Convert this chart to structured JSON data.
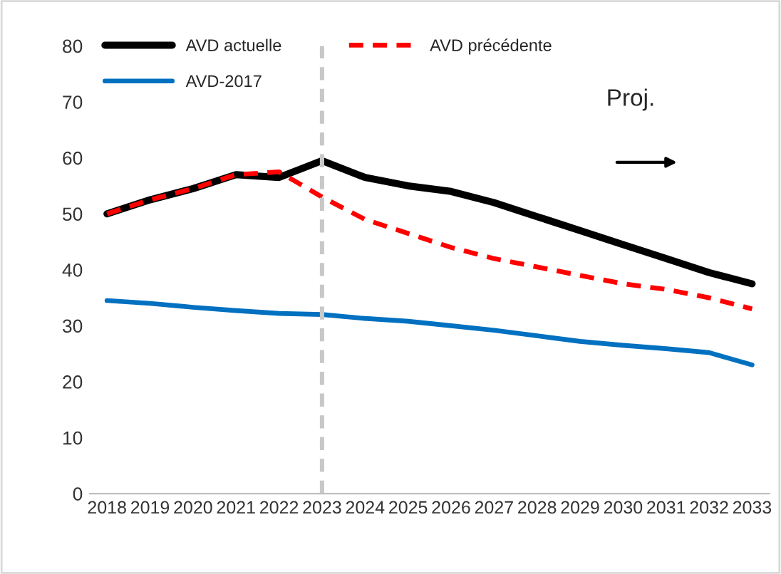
{
  "chart_data": {
    "type": "line",
    "categories": [
      "2018",
      "2019",
      "2020",
      "2021",
      "2022",
      "2023",
      "2024",
      "2025",
      "2026",
      "2027",
      "2028",
      "2029",
      "2030",
      "2031",
      "2032",
      "2033"
    ],
    "series": [
      {
        "name": "AVD actuelle",
        "color": "#000000",
        "line_style": "solid",
        "values": [
          50,
          52.5,
          54.5,
          57,
          56.5,
          59.5,
          56.5,
          55,
          54,
          52,
          49.5,
          47,
          44.5,
          42,
          39.5,
          37.5
        ]
      },
      {
        "name": "AVD précédente",
        "color": "#ff0000",
        "line_style": "dashed",
        "values": [
          50,
          52.5,
          54.5,
          57,
          57.5,
          53,
          49,
          46.5,
          44,
          42,
          40.5,
          39,
          37.5,
          36.5,
          35,
          33
        ]
      },
      {
        "name": "AVD-2017",
        "color": "#0070c0",
        "line_style": "solid",
        "values": [
          34.5,
          34,
          33.3,
          32.7,
          32.2,
          32,
          31.3,
          30.8,
          30,
          29.2,
          28.2,
          27.2,
          26.5,
          25.9,
          25.2,
          23
        ]
      }
    ],
    "ylim": [
      0,
      80
    ],
    "yticks": [
      0,
      10,
      20,
      30,
      40,
      50,
      60,
      70,
      80
    ],
    "grid": false,
    "legend": "top",
    "marker": "none",
    "ref_lines": [
      {
        "axis": "x",
        "value": "2023",
        "color": "#c8c8c8",
        "line_style": "dashed"
      }
    ],
    "annotations": [
      "Proj."
    ]
  }
}
